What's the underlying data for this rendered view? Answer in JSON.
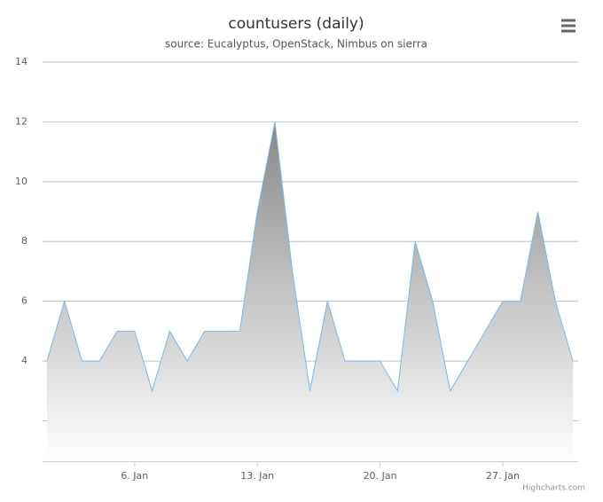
{
  "chart_data": {
    "type": "area",
    "title": "countusers (daily)",
    "subtitle": "source: Eucalyptus, OpenStack, Nimbus on sierra",
    "credits": "Highcharts.com",
    "x": [
      1,
      2,
      3,
      4,
      5,
      6,
      7,
      8,
      9,
      10,
      11,
      12,
      13,
      14,
      15,
      16,
      17,
      18,
      19,
      20,
      21,
      22,
      23,
      24,
      25,
      26,
      27,
      28,
      29,
      30,
      31
    ],
    "series": [
      {
        "name": "countusers",
        "color": "#7cb5ec",
        "values": [
          4,
          6,
          4,
          4,
          5,
          5,
          3,
          5,
          4,
          5,
          5,
          5,
          9,
          12,
          7,
          3,
          6,
          4,
          4,
          4,
          3,
          8,
          6,
          3,
          4,
          5,
          6,
          6,
          9,
          6,
          4
        ]
      }
    ],
    "xlim": [
      0.75,
      31.3
    ],
    "xticks": [
      {
        "value": 6,
        "label": "6. Jan"
      },
      {
        "value": 13,
        "label": "13. Jan"
      },
      {
        "value": 20,
        "label": "20. Jan"
      },
      {
        "value": 27,
        "label": "27. Jan"
      }
    ],
    "ylim": [
      0.65,
      14
    ],
    "yticks": [
      {
        "value": 2,
        "label": null
      },
      4,
      6,
      8,
      10,
      12,
      14
    ],
    "grid": true
  }
}
